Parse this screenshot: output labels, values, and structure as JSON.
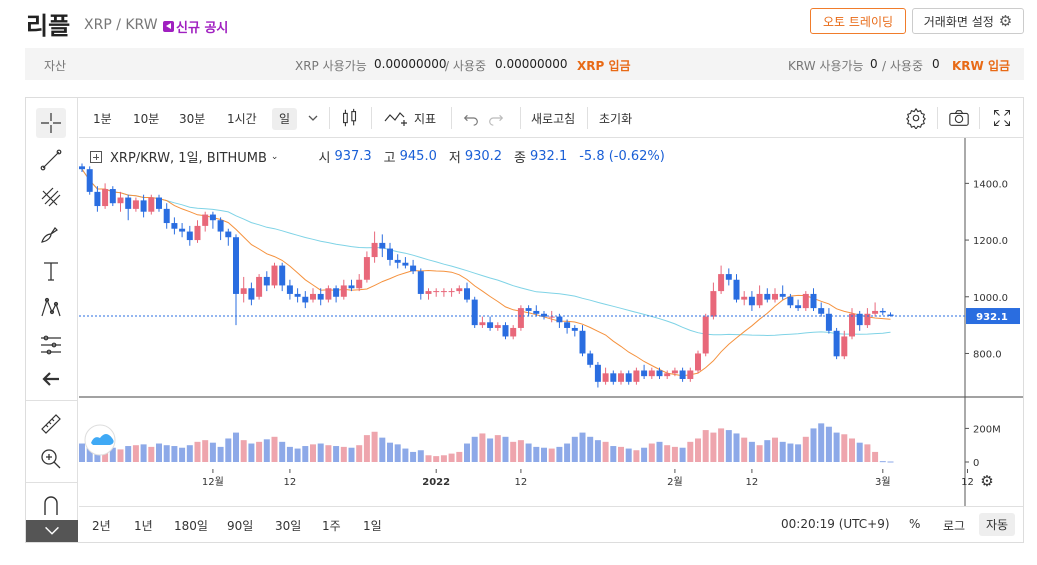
{
  "header": {
    "coin_name": "리플",
    "pair": "XRP / KRW",
    "notice": "신규 공시",
    "auto_trading": "오토 트레이딩",
    "layout_settings": "거래화면 설정"
  },
  "assets": {
    "label": "자산",
    "xrp_available_label": "XRP 사용가능",
    "xrp_available": "0.00000000",
    "xrp_in_use_label": "/ 사용중",
    "xrp_in_use": "0.00000000",
    "xrp_deposit": "XRP 입금",
    "krw_available_label": "KRW 사용가능",
    "krw_available": "0",
    "krw_in_use_label": "/ 사용중",
    "krw_in_use": "0",
    "krw_deposit": "KRW 입금"
  },
  "toolbar": {
    "intervals": [
      "1분",
      "10분",
      "30분",
      "1시간",
      "일"
    ],
    "indicator": "지표",
    "refresh": "새로고침",
    "reset": "초기화"
  },
  "legend": {
    "symbol": "XRP/KRW, 1일, BITHUMB",
    "open_label": "시",
    "open": "937.3",
    "high_label": "고",
    "high": "945.0",
    "low_label": "저",
    "low": "930.2",
    "close_label": "종",
    "close": "932.1",
    "change": "-5.8 (-0.62%)"
  },
  "bottom": {
    "ranges": [
      "2년",
      "1년",
      "180일",
      "90일",
      "30일",
      "1주",
      "1일"
    ],
    "clock": "00:20:19 (UTC+9)",
    "percent": "%",
    "log": "로그",
    "auto": "자동"
  },
  "icons": [
    "crosshair-icon",
    "trendline-icon",
    "pitchfork-icon",
    "brush-icon",
    "text-icon",
    "pattern-icon",
    "forecast-icon",
    "back-arrow-icon",
    "ruler-icon",
    "zoom-icon",
    "magnet-icon",
    "candle-type-icon",
    "indicator-icon",
    "undo-icon",
    "redo-icon",
    "settings-icon",
    "camera-icon",
    "fullscreen-icon",
    "chevron-down-icon"
  ],
  "colors": {
    "up": "#e8687a",
    "down": "#2a6de0",
    "ma_fast": "#f5923e",
    "ma_slow": "#7fd3e6",
    "accent": "#e86a16"
  },
  "chart_data": {
    "type": "candlestick",
    "price_ticks": [
      1400.0,
      1200.0,
      1000.0,
      800.0
    ],
    "price_tick_labels": [
      "1400.0",
      "1200.0",
      "1000.0",
      "800.0"
    ],
    "last_price_label": "932.1",
    "volume_tick_labels": [
      "200M",
      "0"
    ],
    "time_tick_labels": [
      "12월",
      "12",
      "2022",
      "12",
      "2월",
      "12",
      "3월",
      "12"
    ],
    "candles": [
      [
        1460,
        1450,
        1470,
        1440
      ],
      [
        1450,
        1370,
        1460,
        1360
      ],
      [
        1370,
        1320,
        1390,
        1300
      ],
      [
        1320,
        1380,
        1400,
        1310
      ],
      [
        1380,
        1330,
        1390,
        1320
      ],
      [
        1330,
        1350,
        1370,
        1300
      ],
      [
        1350,
        1310,
        1360,
        1270
      ],
      [
        1310,
        1340,
        1350,
        1300
      ],
      [
        1340,
        1300,
        1360,
        1280
      ],
      [
        1300,
        1350,
        1360,
        1290
      ],
      [
        1350,
        1310,
        1360,
        1300
      ],
      [
        1310,
        1260,
        1330,
        1240
      ],
      [
        1260,
        1240,
        1280,
        1220
      ],
      [
        1240,
        1230,
        1260,
        1210
      ],
      [
        1230,
        1200,
        1250,
        1180
      ],
      [
        1200,
        1250,
        1270,
        1190
      ],
      [
        1250,
        1290,
        1300,
        1230
      ],
      [
        1290,
        1270,
        1300,
        1240
      ],
      [
        1270,
        1230,
        1280,
        1200
      ],
      [
        1230,
        1210,
        1240,
        1180
      ],
      [
        1210,
        1010,
        1220,
        900
      ],
      [
        1010,
        1030,
        1070,
        980
      ],
      [
        1030,
        990,
        1050,
        970
      ],
      [
        1000,
        1070,
        1080,
        990
      ],
      [
        1070,
        1040,
        1090,
        1020
      ],
      [
        1040,
        1110,
        1120,
        1030
      ],
      [
        1110,
        1040,
        1120,
        1020
      ],
      [
        1040,
        1010,
        1060,
        990
      ],
      [
        1010,
        1000,
        1030,
        980
      ],
      [
        1000,
        980,
        1020,
        960
      ],
      [
        990,
        1010,
        1030,
        980
      ],
      [
        1010,
        990,
        1030,
        970
      ],
      [
        990,
        1030,
        1040,
        980
      ],
      [
        1030,
        1000,
        1040,
        980
      ],
      [
        1000,
        1040,
        1060,
        990
      ],
      [
        1040,
        1030,
        1060,
        1020
      ],
      [
        1030,
        1060,
        1080,
        1020
      ],
      [
        1060,
        1140,
        1160,
        1050
      ],
      [
        1140,
        1190,
        1230,
        1120
      ],
      [
        1190,
        1170,
        1220,
        1140
      ],
      [
        1170,
        1130,
        1190,
        1110
      ],
      [
        1130,
        1120,
        1150,
        1100
      ],
      [
        1120,
        1110,
        1140,
        1100
      ],
      [
        1110,
        1090,
        1130,
        1080
      ],
      [
        1090,
        1010,
        1100,
        990
      ],
      [
        1010,
        1020,
        1030,
        990
      ],
      [
        1020,
        1020,
        1030,
        1000
      ],
      [
        1020,
        1020,
        1030,
        1000
      ],
      [
        1020,
        1020,
        1030,
        1000
      ],
      [
        1020,
        1030,
        1040,
        1010
      ],
      [
        1030,
        990,
        1050,
        980
      ],
      [
        990,
        900,
        1000,
        890
      ],
      [
        900,
        910,
        930,
        890
      ],
      [
        910,
        890,
        930,
        880
      ],
      [
        890,
        900,
        910,
        880
      ],
      [
        900,
        860,
        910,
        850
      ],
      [
        860,
        890,
        900,
        850
      ],
      [
        890,
        960,
        970,
        880
      ],
      [
        960,
        950,
        970,
        930
      ],
      [
        950,
        940,
        970,
        930
      ],
      [
        940,
        930,
        950,
        920
      ],
      [
        930,
        930,
        950,
        910
      ],
      [
        930,
        910,
        940,
        890
      ],
      [
        910,
        890,
        920,
        870
      ],
      [
        890,
        880,
        900,
        860
      ],
      [
        880,
        800,
        900,
        790
      ],
      [
        800,
        760,
        810,
        750
      ],
      [
        760,
        700,
        770,
        680
      ],
      [
        700,
        730,
        750,
        690
      ],
      [
        730,
        700,
        740,
        690
      ],
      [
        700,
        730,
        740,
        690
      ],
      [
        730,
        700,
        740,
        690
      ],
      [
        700,
        740,
        750,
        690
      ],
      [
        740,
        720,
        760,
        710
      ],
      [
        720,
        740,
        750,
        710
      ],
      [
        740,
        720,
        750,
        710
      ],
      [
        720,
        730,
        740,
        710
      ],
      [
        730,
        740,
        750,
        720
      ],
      [
        740,
        710,
        750,
        700
      ],
      [
        710,
        740,
        750,
        700
      ],
      [
        740,
        800,
        810,
        730
      ],
      [
        800,
        930,
        940,
        790
      ],
      [
        930,
        1020,
        1050,
        920
      ],
      [
        1020,
        1080,
        1110,
        1010
      ],
      [
        1080,
        1060,
        1100,
        1040
      ],
      [
        1060,
        990,
        1080,
        980
      ],
      [
        990,
        1000,
        1020,
        970
      ],
      [
        1000,
        970,
        1020,
        950
      ],
      [
        970,
        1010,
        1040,
        960
      ],
      [
        1010,
        990,
        1030,
        980
      ],
      [
        990,
        1010,
        1030,
        980
      ],
      [
        1010,
        1000,
        1040,
        990
      ],
      [
        1000,
        970,
        1010,
        960
      ],
      [
        970,
        960,
        990,
        950
      ],
      [
        960,
        1010,
        1020,
        950
      ],
      [
        1010,
        960,
        1030,
        950
      ],
      [
        960,
        940,
        980,
        930
      ],
      [
        940,
        880,
        960,
        870
      ],
      [
        880,
        790,
        890,
        780
      ],
      [
        790,
        860,
        880,
        780
      ],
      [
        860,
        940,
        960,
        850
      ],
      [
        940,
        900,
        950,
        880
      ],
      [
        900,
        940,
        960,
        890
      ],
      [
        940,
        950,
        980,
        930
      ],
      [
        950,
        945,
        960,
        935
      ],
      [
        937.3,
        932.1,
        945.0,
        930.2
      ]
    ],
    "volumes": [
      110,
      90,
      80,
      70,
      85,
      75,
      95,
      100,
      105,
      90,
      110,
      100,
      95,
      85,
      100,
      120,
      130,
      115,
      90,
      140,
      175,
      130,
      110,
      120,
      135,
      150,
      120,
      90,
      80,
      95,
      105,
      110,
      100,
      95,
      90,
      85,
      100,
      160,
      180,
      145,
      115,
      105,
      80,
      60,
      70,
      40,
      35,
      40,
      50,
      60,
      110,
      150,
      170,
      140,
      160,
      150,
      120,
      130,
      110,
      90,
      85,
      80,
      90,
      110,
      150,
      175,
      150,
      130,
      120,
      95,
      90,
      80,
      70,
      85,
      110,
      120,
      100,
      90,
      85,
      120,
      140,
      190,
      175,
      200,
      190,
      170,
      145,
      120,
      100,
      130,
      145,
      120,
      110,
      105,
      150,
      200,
      230,
      210,
      175,
      165,
      140,
      115,
      105,
      60,
      5,
      3
    ]
  }
}
